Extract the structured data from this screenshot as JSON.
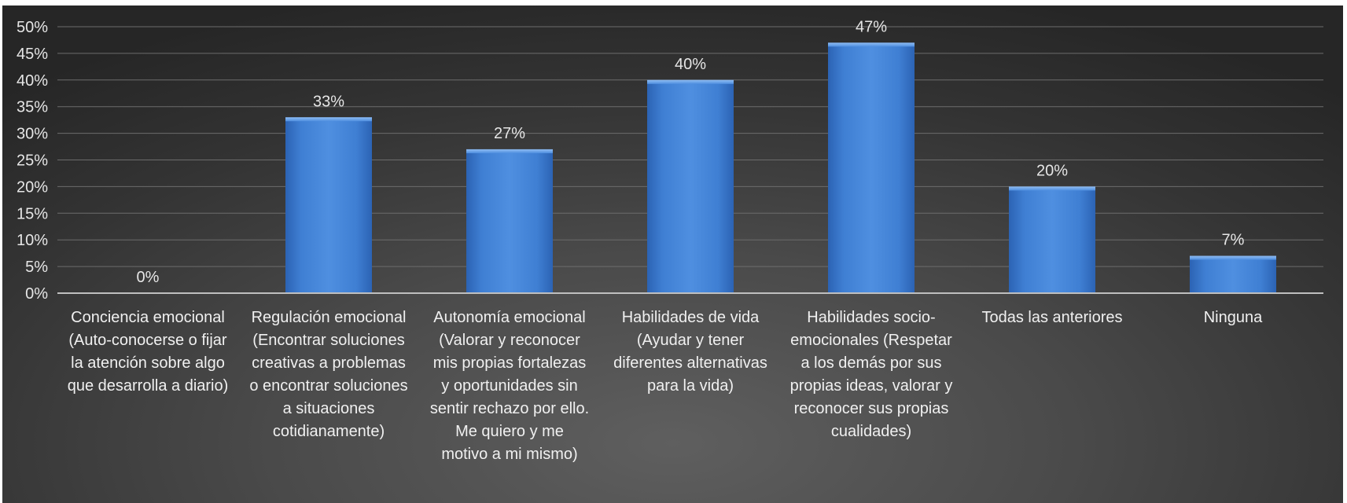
{
  "chart_data": {
    "type": "bar",
    "categories": [
      [
        "Conciencia emocional",
        "(Auto-conocerse o fijar",
        "la atención sobre algo",
        "que desarrolla a diario)"
      ],
      [
        "Regulación emocional",
        "(Encontrar soluciones",
        "creativas a problemas",
        "o encontrar soluciones",
        "a situaciones",
        "cotidianamente)"
      ],
      [
        "Autonomía emocional",
        "(Valorar y reconocer",
        "mis propias fortalezas",
        "y oportunidades sin",
        "sentir rechazo por ello.",
        "Me quiero y me",
        "motivo a mi mismo)"
      ],
      [
        "Habilidades de vida",
        "(Ayudar y tener",
        "diferentes alternativas",
        "para la vida)"
      ],
      [
        "Habilidades socio-",
        "emocionales (Respetar",
        "a los demás por sus",
        "propias ideas, valorar y",
        "reconocer sus propias",
        "cualidades)"
      ],
      [
        "Todas las anteriores"
      ],
      [
        "Ninguna"
      ]
    ],
    "values": [
      0,
      33,
      27,
      40,
      47,
      20,
      7
    ],
    "data_labels": [
      "0%",
      "33%",
      "27%",
      "40%",
      "47%",
      "20%",
      "7%"
    ],
    "yticks": [
      "0%",
      "5%",
      "10%",
      "15%",
      "20%",
      "25%",
      "30%",
      "35%",
      "40%",
      "45%",
      "50%"
    ],
    "ylim": [
      0,
      50
    ],
    "title": "",
    "xlabel": "",
    "ylabel": "",
    "grid": true,
    "legend": "none",
    "colors": {
      "bar_light": "#5a96e0",
      "bar_mid": "#3f7fd3",
      "bar_dark": "#2c63b4",
      "grid": "#6c6c6c",
      "axis": "#bfbfbf",
      "text": "#e6e6e6"
    }
  }
}
